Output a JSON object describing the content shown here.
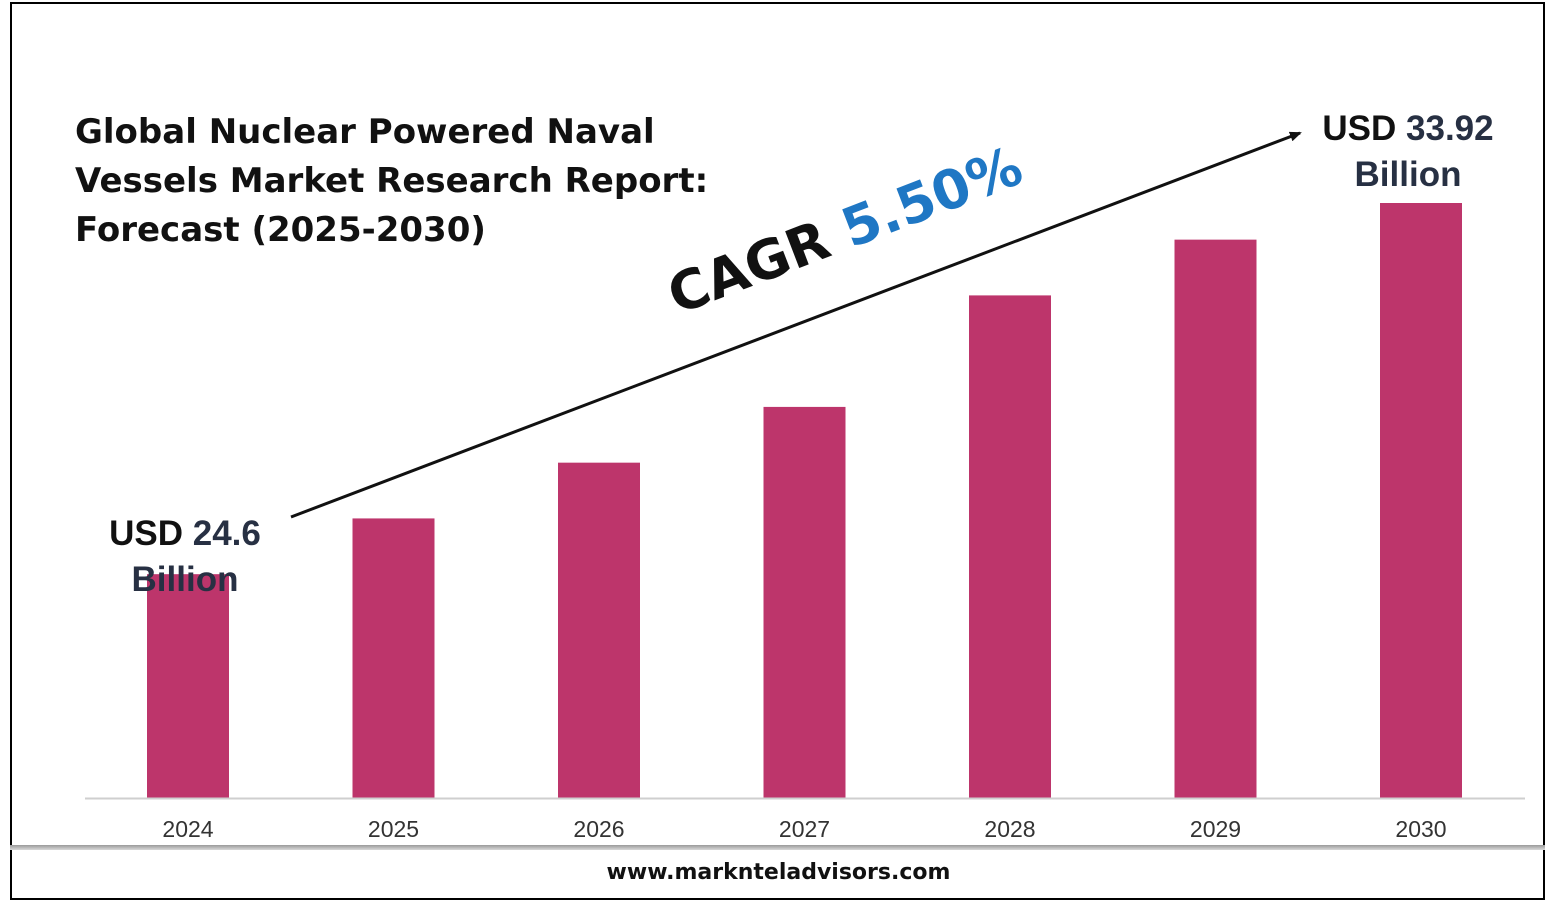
{
  "title_lines": [
    "Global Nuclear Powered Naval",
    "Vessels Market Research Report:",
    "Forecast (2025-2030)"
  ],
  "cagr": {
    "label": "CAGR",
    "value": "5.50%"
  },
  "start_label": {
    "usd": "USD",
    "amount": "24.6",
    "unit": "Billion"
  },
  "end_label": {
    "usd": "USD",
    "amount": "33.92",
    "unit": "Billion"
  },
  "footer": "www.marknteladvisors.com",
  "colors": {
    "bar": "#bd356b",
    "cagr_value": "#1f77c4",
    "label_dark": "#273043"
  },
  "chart_data": {
    "type": "bar",
    "title": "Global Nuclear Powered Naval Vessels Market Research Report: Forecast (2025-2030)",
    "categories": [
      "2024",
      "2025",
      "2026",
      "2027",
      "2028",
      "2029",
      "2030"
    ],
    "values": [
      24.6,
      26.0,
      27.4,
      28.8,
      31.6,
      33.0,
      33.92
    ],
    "value_unit": "USD Billion",
    "ylim": [
      18.98,
      33.92
    ],
    "grid": false,
    "legend": "none"
  }
}
